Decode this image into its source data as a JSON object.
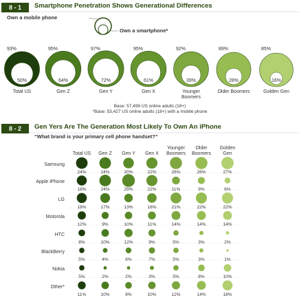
{
  "chart_data": [
    {
      "type": "nested-circle",
      "label": "8 - 1",
      "title": "Smartphone Penetration Shows Generational Differences",
      "categories": [
        "Total US",
        "Gen Z",
        "Gen Y",
        "Gen X",
        "Younger Boomers",
        "Older Boomers",
        "Golden Gen"
      ],
      "colors": [
        "#1e3d0c",
        "#4a7a1e",
        "#5a8a28",
        "#669530",
        "#7fa840",
        "#97bd52",
        "#b2d070"
      ],
      "series": [
        {
          "name": "Own a mobile phone",
          "values": [
            93,
            95,
            97,
            95,
            92,
            89,
            85
          ],
          "value_labels": [
            "93%",
            "95%",
            "97%",
            "95%",
            "92%",
            "89%",
            "85%"
          ]
        },
        {
          "name": "Own a smartphone*",
          "values": [
            50,
            64,
            72,
            61,
            39,
            28,
            16
          ],
          "value_labels": [
            "50%",
            "64%",
            "72%",
            "61%",
            "39%",
            "28%",
            "16%"
          ]
        }
      ],
      "notes": [
        "Base: 57,499 US online adults (18+)",
        "*Base: 53,427 US online adults (18+) with a mobile phone"
      ]
    },
    {
      "type": "bubble-matrix",
      "label": "8 - 2",
      "title": "Gen Yers Are The Generation Most Likely To Own An iPhone",
      "subtitle": "“What brand is your primary cell phone handset?”",
      "columns": [
        "Total US",
        "Gen Z",
        "Gen Y",
        "Gen X",
        "Younger Boomers",
        "Older Boomers",
        "Golden Gen"
      ],
      "colors": [
        "#1e3d0c",
        "#4a7a1e",
        "#5a8a28",
        "#669530",
        "#7fa840",
        "#97bd52",
        "#b2d070"
      ],
      "rows": [
        "Samsung",
        "Apple iPhone",
        "LG",
        "Motorola",
        "HTC",
        "BlackBerry",
        "Nokia",
        "Other*"
      ],
      "values": [
        [
          24,
          24,
          20,
          22,
          26,
          26,
          27
        ],
        [
          18,
          24,
          29,
          22,
          11,
          9,
          6
        ],
        [
          18,
          17,
          13,
          16,
          21,
          22,
          22
        ],
        [
          12,
          9,
          10,
          11,
          14,
          14,
          14
        ],
        [
          8,
          10,
          12,
          9,
          5,
          3,
          2
        ],
        [
          5,
          4,
          6,
          7,
          5,
          3,
          1
        ],
        [
          5,
          2,
          2,
          3,
          5,
          8,
          10
        ],
        [
          11,
          10,
          8,
          10,
          12,
          14,
          18
        ]
      ],
      "value_labels": [
        [
          "24%",
          "24%",
          "20%",
          "22%",
          "26%",
          "26%",
          "27%"
        ],
        [
          "18%",
          "24%",
          "29%",
          "22%",
          "11%",
          "9%",
          "6%"
        ],
        [
          "18%",
          "17%",
          "13%",
          "16%",
          "21%",
          "22%",
          "22%"
        ],
        [
          "12%",
          "9%",
          "10%",
          "11%",
          "14%",
          "14%",
          "14%"
        ],
        [
          "8%",
          "10%",
          "12%",
          "9%",
          "5%",
          "3%",
          "2%"
        ],
        [
          "5%",
          "4%",
          "6%",
          "7%",
          "5%",
          "3%",
          "1%"
        ],
        [
          "5%",
          "2%",
          "2%",
          "3%",
          "5%",
          "8%",
          "10%"
        ],
        [
          "11%",
          "10%",
          "8%",
          "10%",
          "12%",
          "14%",
          "18%"
        ]
      ]
    }
  ]
}
